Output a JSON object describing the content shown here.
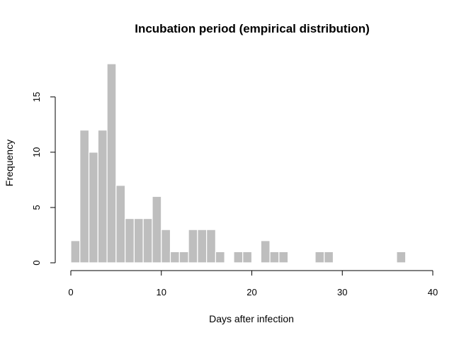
{
  "chart_data": {
    "type": "bar",
    "title": "Incubation period (empirical distribution)",
    "xlabel": "Days after infection",
    "ylabel": "Frequency",
    "xlim": [
      0,
      40
    ],
    "ylim": [
      0,
      18
    ],
    "x_ticks": [
      0,
      10,
      20,
      30,
      40
    ],
    "y_ticks": [
      0,
      5,
      10,
      15
    ],
    "bin_width": 1,
    "bar_color": "#bebebe",
    "bar_border_color": "#ffffff",
    "grid": false,
    "legend": "none",
    "bins": [
      {
        "x0": 0,
        "x1": 1,
        "count": 2
      },
      {
        "x0": 1,
        "x1": 2,
        "count": 12
      },
      {
        "x0": 2,
        "x1": 3,
        "count": 10
      },
      {
        "x0": 3,
        "x1": 4,
        "count": 12
      },
      {
        "x0": 4,
        "x1": 5,
        "count": 18
      },
      {
        "x0": 5,
        "x1": 6,
        "count": 7
      },
      {
        "x0": 6,
        "x1": 7,
        "count": 4
      },
      {
        "x0": 7,
        "x1": 8,
        "count": 4
      },
      {
        "x0": 8,
        "x1": 9,
        "count": 4
      },
      {
        "x0": 9,
        "x1": 10,
        "count": 6
      },
      {
        "x0": 10,
        "x1": 11,
        "count": 3
      },
      {
        "x0": 11,
        "x1": 12,
        "count": 1
      },
      {
        "x0": 12,
        "x1": 13,
        "count": 1
      },
      {
        "x0": 13,
        "x1": 14,
        "count": 3
      },
      {
        "x0": 14,
        "x1": 15,
        "count": 3
      },
      {
        "x0": 15,
        "x1": 16,
        "count": 3
      },
      {
        "x0": 16,
        "x1": 17,
        "count": 1
      },
      {
        "x0": 17,
        "x1": 18,
        "count": 0
      },
      {
        "x0": 18,
        "x1": 19,
        "count": 1
      },
      {
        "x0": 19,
        "x1": 20,
        "count": 1
      },
      {
        "x0": 20,
        "x1": 21,
        "count": 0
      },
      {
        "x0": 21,
        "x1": 22,
        "count": 2
      },
      {
        "x0": 22,
        "x1": 23,
        "count": 1
      },
      {
        "x0": 23,
        "x1": 24,
        "count": 1
      },
      {
        "x0": 24,
        "x1": 25,
        "count": 0
      },
      {
        "x0": 25,
        "x1": 26,
        "count": 0
      },
      {
        "x0": 26,
        "x1": 27,
        "count": 0
      },
      {
        "x0": 27,
        "x1": 28,
        "count": 1
      },
      {
        "x0": 28,
        "x1": 29,
        "count": 1
      },
      {
        "x0": 29,
        "x1": 30,
        "count": 0
      },
      {
        "x0": 30,
        "x1": 31,
        "count": 0
      },
      {
        "x0": 31,
        "x1": 32,
        "count": 0
      },
      {
        "x0": 32,
        "x1": 33,
        "count": 0
      },
      {
        "x0": 33,
        "x1": 34,
        "count": 0
      },
      {
        "x0": 34,
        "x1": 35,
        "count": 0
      },
      {
        "x0": 35,
        "x1": 36,
        "count": 0
      },
      {
        "x0": 36,
        "x1": 37,
        "count": 1
      }
    ]
  }
}
